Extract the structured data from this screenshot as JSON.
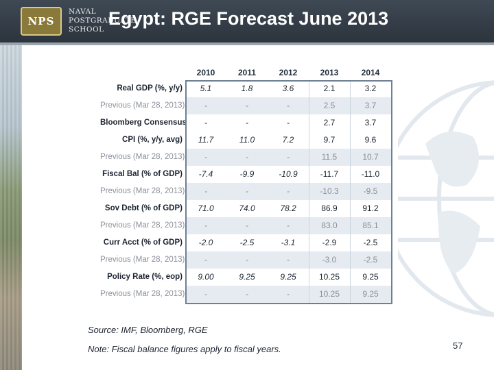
{
  "header": {
    "title": "Egypt: RGE Forecast June 2013",
    "logo_badge": "NPS",
    "logo_lines": [
      "NAVAL",
      "POSTGRADUATE",
      "SCHOOL"
    ]
  },
  "table": {
    "years": [
      "2010",
      "2011",
      "2012",
      "2013",
      "2014"
    ],
    "rows": [
      {
        "label": "Real GDP (%, y/y)",
        "kind": "main",
        "values": [
          "5.1",
          "1.8",
          "3.6",
          "2.1",
          "3.2"
        ]
      },
      {
        "label": "Previous (Mar 28, 2013)",
        "kind": "prev",
        "values": [
          "-",
          "-",
          "-",
          "2.5",
          "3.7"
        ]
      },
      {
        "label": "Bloomberg Consensus",
        "kind": "main",
        "values": [
          "-",
          "-",
          "-",
          "2.7",
          "3.7"
        ]
      },
      {
        "label": "CPI (%, y/y, avg)",
        "kind": "main",
        "values": [
          "11.7",
          "11.0",
          "7.2",
          "9.7",
          "9.6"
        ]
      },
      {
        "label": "Previous (Mar 28, 2013)",
        "kind": "prev",
        "values": [
          "-",
          "-",
          "-",
          "11.5",
          "10.7"
        ]
      },
      {
        "label": "Fiscal Bal (% of GDP)",
        "kind": "main",
        "values": [
          "-7.4",
          "-9.9",
          "-10.9",
          "-11.7",
          "-11.0"
        ]
      },
      {
        "label": "Previous (Mar 28, 2013)",
        "kind": "prev",
        "values": [
          "-",
          "-",
          "-",
          "-10.3",
          "-9.5"
        ]
      },
      {
        "label": "Sov Debt (% of GDP)",
        "kind": "main",
        "values": [
          "71.0",
          "74.0",
          "78.2",
          "86.9",
          "91.2"
        ]
      },
      {
        "label": "Previous (Mar 28, 2013)",
        "kind": "prev",
        "values": [
          "-",
          "-",
          "-",
          "83.0",
          "85.1"
        ]
      },
      {
        "label": "Curr Acct (% of GDP)",
        "kind": "main",
        "values": [
          "-2.0",
          "-2.5",
          "-3.1",
          "-2.9",
          "-2.5"
        ]
      },
      {
        "label": "Previous (Mar 28, 2013)",
        "kind": "prev",
        "values": [
          "-",
          "-",
          "-",
          "-3.0",
          "-2.5"
        ]
      },
      {
        "label": "Policy Rate (%, eop)",
        "kind": "main",
        "values": [
          "9.00",
          "9.25",
          "9.25",
          "10.25",
          "9.25"
        ]
      },
      {
        "label": "Previous (Mar 28, 2013)",
        "kind": "prev",
        "values": [
          "-",
          "-",
          "-",
          "10.25",
          "9.25"
        ]
      }
    ]
  },
  "footer": {
    "source": "Source: IMF, Bloomberg, RGE",
    "note": "Note: Fiscal balance figures apply to fiscal years.",
    "page_number": "57"
  },
  "colors": {
    "header_bg": "#333c46",
    "frame": "#6d7f94",
    "prev_band": "#e6ebf1"
  }
}
